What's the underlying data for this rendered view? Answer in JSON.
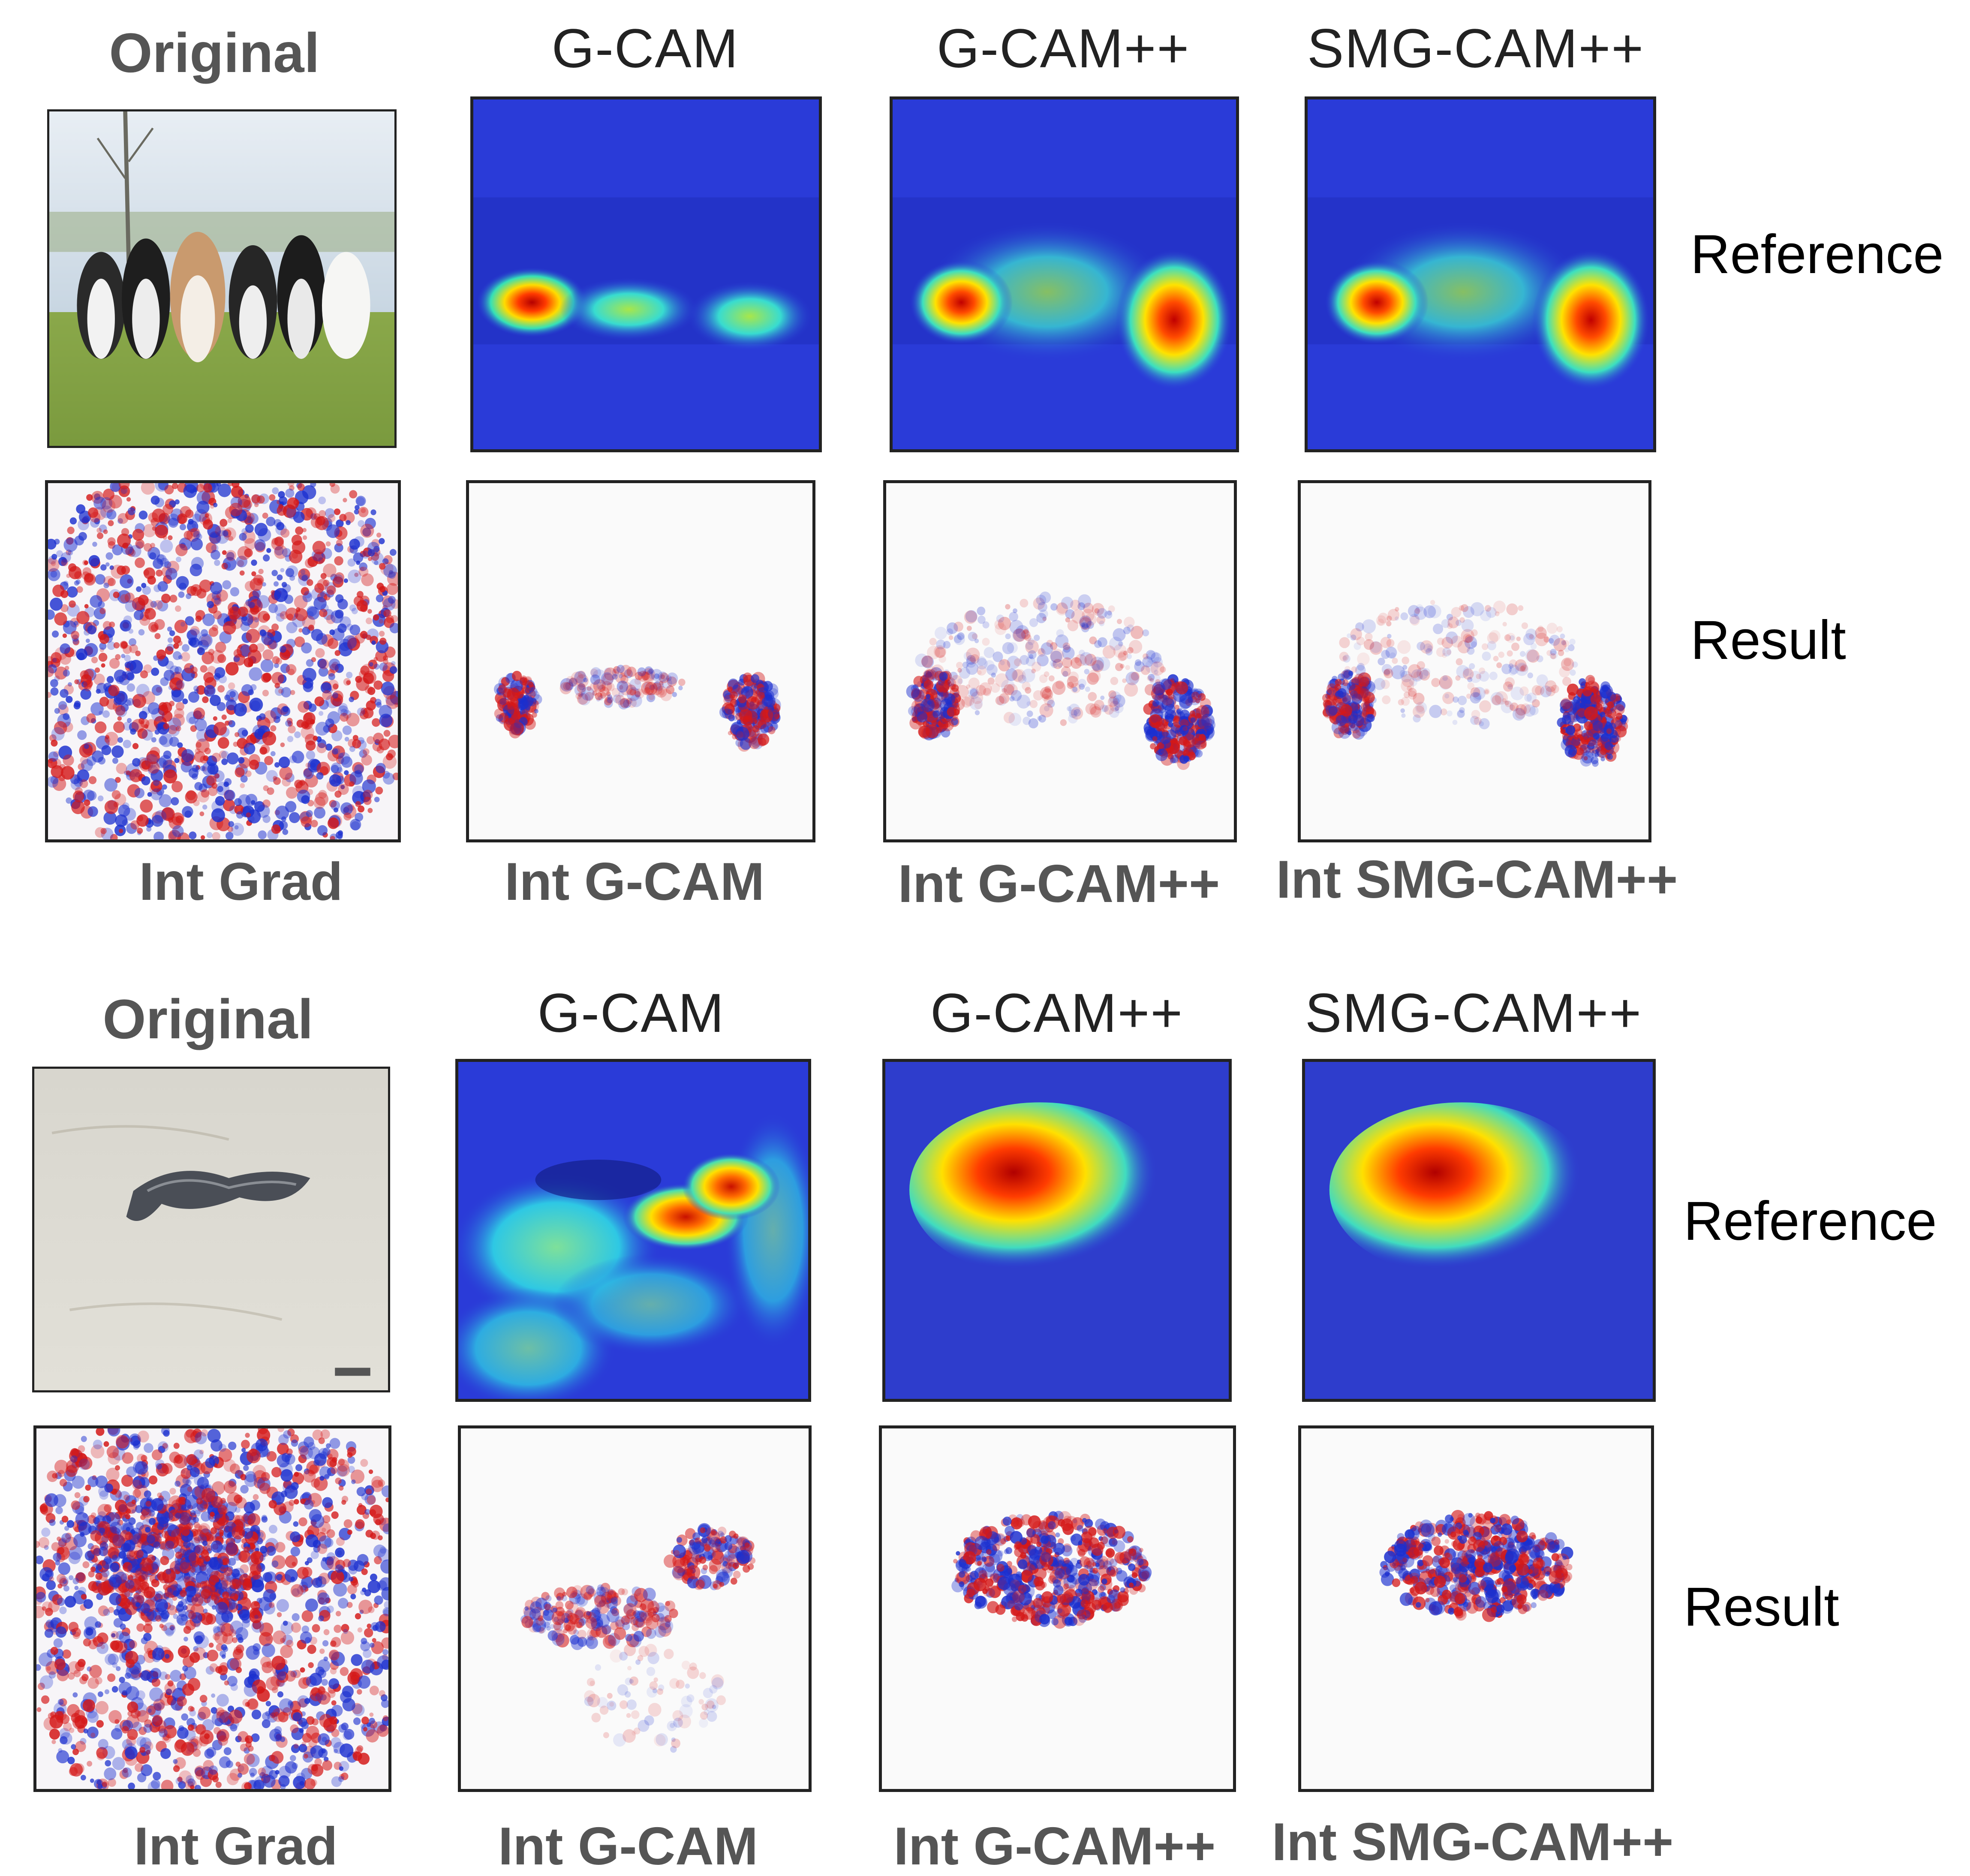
{
  "figure": {
    "examples": [
      {
        "subject": "dogs",
        "headers": {
          "original": "Original",
          "gcam": "G-CAM",
          "gcampp": "G-CAM++",
          "smg": "SMG-CAM++"
        },
        "row_labels": {
          "reference": "Reference",
          "result": "Result"
        },
        "captions": {
          "intgrad": "Int Grad",
          "int_gcam": "Int G-CAM",
          "int_gcampp": "Int G-CAM++",
          "int_smg": "Int SMG-CAM++"
        }
      },
      {
        "subject": "snake",
        "headers": {
          "original": "Original",
          "gcam": "G-CAM",
          "gcampp": "G-CAM++",
          "smg": "SMG-CAM++"
        },
        "row_labels": {
          "reference": "Reference",
          "result": "Result"
        },
        "captions": {
          "intgrad": "Int Grad",
          "int_gcam": "Int G-CAM",
          "int_gcampp": "Int G-CAM++",
          "int_smg": "Int SMG-CAM++"
        }
      }
    ],
    "colors": {
      "heatmap_base": "#2a3bd8",
      "positive": "#d41818",
      "negative": "#1b2fcf",
      "panel_border": "#222222"
    }
  }
}
